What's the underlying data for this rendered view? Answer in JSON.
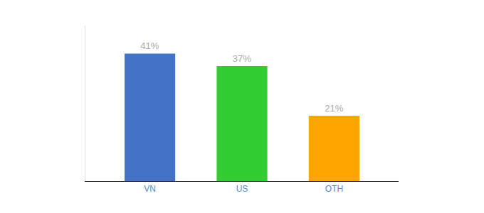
{
  "chart_data": {
    "type": "bar",
    "categories": [
      "VN",
      "US",
      "OTH"
    ],
    "values": [
      41,
      37,
      21
    ],
    "value_labels": [
      "41%",
      "37%",
      "21%"
    ],
    "colors": [
      "#4472C4",
      "#33CC33",
      "#FFA500"
    ],
    "ylim": [
      0,
      50
    ],
    "data_labels": true,
    "tick_labels": "x",
    "grid": false
  }
}
